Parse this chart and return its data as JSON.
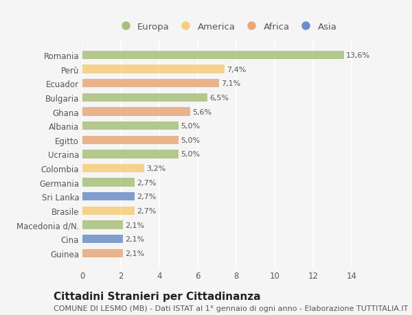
{
  "countries": [
    "Romania",
    "Perù",
    "Ecuador",
    "Bulgaria",
    "Ghana",
    "Albania",
    "Egitto",
    "Ucraina",
    "Colombia",
    "Germania",
    "Sri Lanka",
    "Brasile",
    "Macedonia d/N.",
    "Cina",
    "Guinea"
  ],
  "values": [
    13.6,
    7.4,
    7.1,
    6.5,
    5.6,
    5.0,
    5.0,
    5.0,
    3.2,
    2.7,
    2.7,
    2.7,
    2.1,
    2.1,
    2.1
  ],
  "labels": [
    "13,6%",
    "7,4%",
    "7,1%",
    "6,5%",
    "5,6%",
    "5,0%",
    "5,0%",
    "5,0%",
    "3,2%",
    "2,7%",
    "2,7%",
    "2,7%",
    "2,1%",
    "2,1%",
    "2,1%"
  ],
  "continents": [
    "Europa",
    "America",
    "Africa",
    "Europa",
    "Africa",
    "Europa",
    "Africa",
    "Europa",
    "America",
    "Europa",
    "Asia",
    "America",
    "Europa",
    "Asia",
    "Africa"
  ],
  "continent_colors": {
    "Europa": "#a8c07a",
    "America": "#f5ce7a",
    "Africa": "#e8a87a",
    "Asia": "#6a8fc8"
  },
  "legend_order": [
    "Europa",
    "America",
    "Africa",
    "Asia"
  ],
  "title": "Cittadini Stranieri per Cittadinanza",
  "subtitle": "COMUNE DI LESMO (MB) - Dati ISTAT al 1° gennaio di ogni anno - Elaborazione TUTTITALIA.IT",
  "xlim": [
    0,
    15
  ],
  "xticks": [
    0,
    2,
    4,
    6,
    8,
    10,
    12,
    14
  ],
  "background_color": "#f5f5f5",
  "bar_height": 0.6,
  "title_fontsize": 11,
  "subtitle_fontsize": 8,
  "label_fontsize": 8,
  "tick_fontsize": 8.5,
  "legend_fontsize": 9.5
}
